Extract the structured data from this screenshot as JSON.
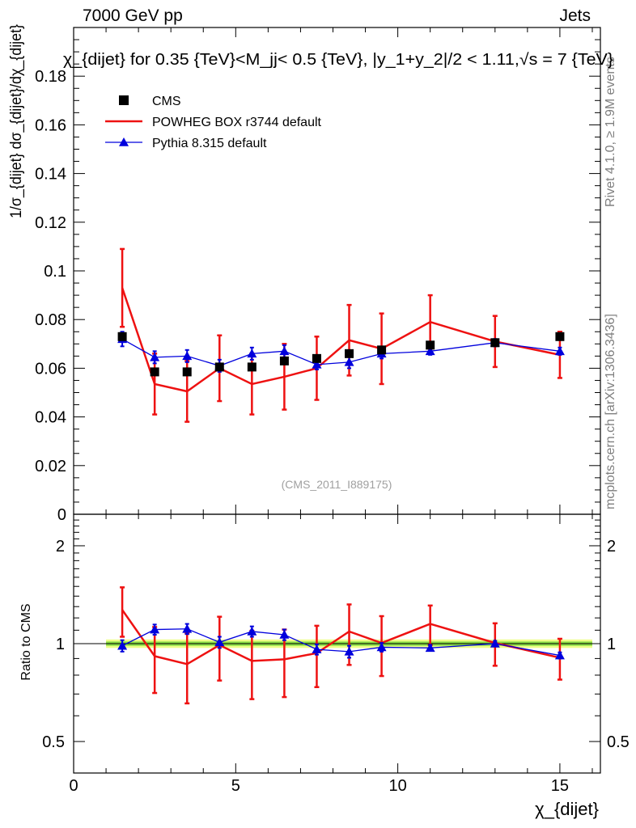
{
  "header": {
    "left": "7000 GeV pp",
    "right": "Jets"
  },
  "side_labels": {
    "rivet": "Rivet 4.1.0, ≥ 1.9M events",
    "mcplots": "mcplots.cern.ch [arXiv:1306.3436]"
  },
  "colors": {
    "data": "#000000",
    "powheg": "#ee1111",
    "pythia": "#0000dd",
    "band_outer": "#eeff88",
    "band_inner": "#88dd44"
  },
  "chart_data": [
    {
      "type": "scatter",
      "panel": "main",
      "title": "χ_{dijet} for 0.35 {TeV}<M_jj< 0.5 {TeV}, |y_1+y_2|/2 < 1.11,√s = 7 {TeV}",
      "ylabel": "1/σ_{dijet} dσ_{dijet}/dχ_{dijet}",
      "watermark": "(CMS_2011_I889175)",
      "xlim": [
        0,
        16.25
      ],
      "ylim": [
        0,
        0.2
      ],
      "y_ticks": [
        0,
        0.02,
        0.04,
        0.06,
        0.08,
        0.1,
        0.12,
        0.14,
        0.16,
        0.18
      ],
      "y_tick_labels": [
        "0",
        "0.02",
        "0.04",
        "0.06",
        "0.08",
        "0.1",
        "0.12",
        "0.14",
        "0.16",
        "0.18"
      ],
      "legend": [
        "CMS",
        "POWHEG BOX r3744 default",
        "Pythia 8.315 default"
      ],
      "x": [
        1.5,
        2.5,
        3.5,
        4.5,
        5.5,
        6.5,
        7.5,
        8.5,
        9.5,
        11,
        13,
        15
      ],
      "x_edges": [
        1,
        2,
        3,
        4,
        5,
        6,
        7,
        8,
        9,
        10,
        12,
        14,
        16
      ],
      "series": [
        {
          "name": "CMS",
          "values": [
            0.073,
            0.0585,
            0.0585,
            0.0605,
            0.0605,
            0.063,
            0.064,
            0.066,
            0.0675,
            0.0695,
            0.0705,
            0.073
          ],
          "errors": [
            0.002,
            0.0015,
            0.0015,
            0.0015,
            0.0015,
            0.0015,
            0.0015,
            0.0015,
            0.0015,
            0.0015,
            0.0015,
            0.002
          ]
        },
        {
          "name": "POWHEG BOX r3744 default",
          "values": [
            0.093,
            0.0535,
            0.0505,
            0.06,
            0.0535,
            0.0565,
            0.06,
            0.0715,
            0.068,
            0.079,
            0.071,
            0.0655
          ],
          "errors": [
            0.016,
            0.0125,
            0.0125,
            0.0135,
            0.0125,
            0.0135,
            0.013,
            0.0145,
            0.0145,
            0.011,
            0.0105,
            0.0095
          ]
        },
        {
          "name": "Pythia 8.315 default",
          "values": [
            0.072,
            0.0645,
            0.065,
            0.061,
            0.066,
            0.067,
            0.0615,
            0.0625,
            0.066,
            0.067,
            0.0705,
            0.067
          ],
          "errors": [
            0.003,
            0.0025,
            0.0025,
            0.0025,
            0.0025,
            0.0025,
            0.002,
            0.0025,
            0.002,
            0.0015,
            0.0015,
            0.0015
          ]
        }
      ]
    },
    {
      "type": "line",
      "panel": "ratio",
      "ylabel": "Ratio to CMS",
      "xlabel": "χ_{dijet}",
      "xlim": [
        0,
        16.25
      ],
      "ylim": [
        0.4,
        2.5
      ],
      "scale": "log",
      "y_ticks": [
        0.5,
        1,
        2
      ],
      "y_tick_labels": [
        "0.5",
        "1",
        "2"
      ],
      "x_ticks": [
        0,
        5,
        10,
        15
      ],
      "x_tick_labels": [
        "0",
        "5",
        "10",
        "15"
      ],
      "x": [
        1.5,
        2.5,
        3.5,
        4.5,
        5.5,
        6.5,
        7.5,
        8.5,
        9.5,
        11,
        13,
        15
      ],
      "band": {
        "outer": 0.03,
        "inner": 0.015
      },
      "series": [
        {
          "name": "POWHEG BOX r3744 default",
          "values": [
            1.27,
            0.915,
            0.865,
            0.99,
            0.885,
            0.895,
            0.935,
            1.09,
            1.005,
            1.15,
            1.005,
            0.905
          ],
          "errors": [
            0.22,
            0.21,
            0.21,
            0.22,
            0.21,
            0.21,
            0.2,
            0.23,
            0.21,
            0.16,
            0.15,
            0.13
          ]
        },
        {
          "name": "Pythia 8.315 default",
          "values": [
            0.985,
            1.105,
            1.11,
            1.01,
            1.09,
            1.065,
            0.96,
            0.945,
            0.975,
            0.97,
            1.0,
            0.92
          ],
          "errors": [
            0.04,
            0.04,
            0.04,
            0.04,
            0.04,
            0.04,
            0.035,
            0.04,
            0.03,
            0.02,
            0.02,
            0.02
          ]
        }
      ]
    }
  ]
}
